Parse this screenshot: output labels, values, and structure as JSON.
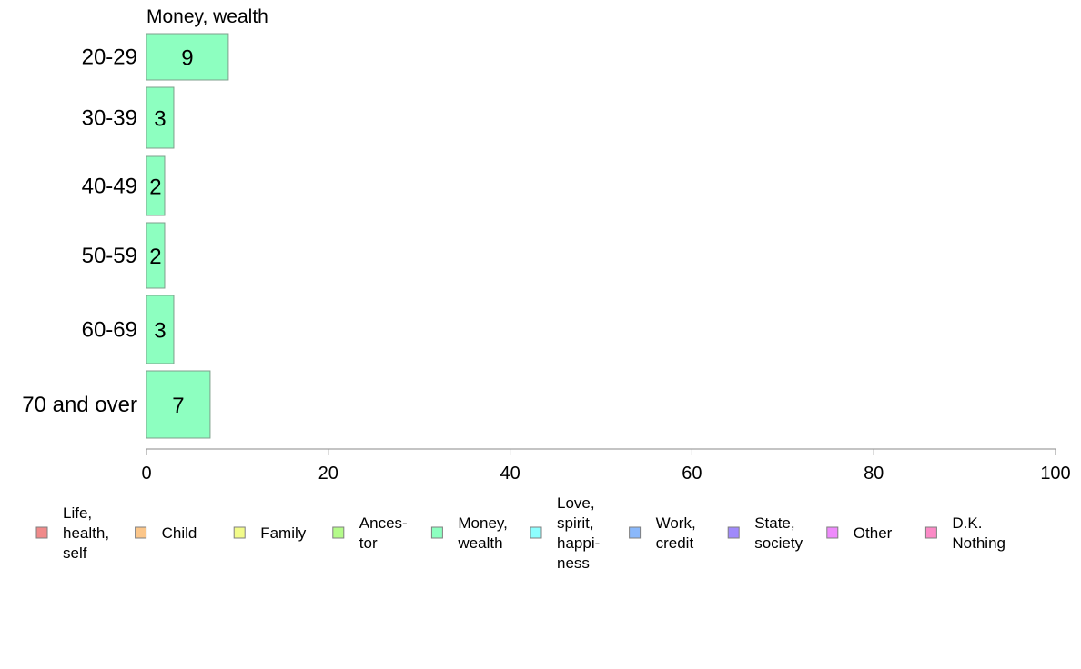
{
  "chart_data": {
    "type": "bar",
    "orientation": "horizontal",
    "title": "Money, wealth",
    "categories": [
      "20-29",
      "30-39",
      "40-49",
      "50-59",
      "60-69",
      "70 and over"
    ],
    "series": [
      {
        "name": "Money, wealth",
        "values": [
          9,
          3,
          2,
          2,
          3,
          7
        ],
        "value_labels": [
          "9",
          "3",
          "2",
          "2",
          "3",
          "7"
        ],
        "color": "#8dffc0"
      }
    ],
    "xlim": [
      0,
      100
    ],
    "xticks": [
      0,
      20,
      40,
      60,
      80,
      100
    ],
    "grid": false,
    "legend_position": "bottom",
    "legend": [
      {
        "lines": [
          "Life,",
          "health,",
          "self"
        ],
        "color": "#f08a8a"
      },
      {
        "lines": [
          "Child"
        ],
        "color": "#fbc68a"
      },
      {
        "lines": [
          "Family"
        ],
        "color": "#f2fb8a"
      },
      {
        "lines": [
          "Ances-",
          "tor"
        ],
        "color": "#b4fb8a"
      },
      {
        "lines": [
          "Money,",
          "wealth"
        ],
        "color": "#8dffc0"
      },
      {
        "lines": [
          "Love,",
          "spirit,",
          "happi-",
          "ness"
        ],
        "color": "#8dffff"
      },
      {
        "lines": [
          "Work,",
          "credit"
        ],
        "color": "#8ab8fb"
      },
      {
        "lines": [
          "State,",
          "society"
        ],
        "color": "#a08afb"
      },
      {
        "lines": [
          "Other"
        ],
        "color": "#ee8afb"
      },
      {
        "lines": [
          "D.K.",
          "Nothing"
        ],
        "color": "#fb8ac6"
      }
    ]
  }
}
